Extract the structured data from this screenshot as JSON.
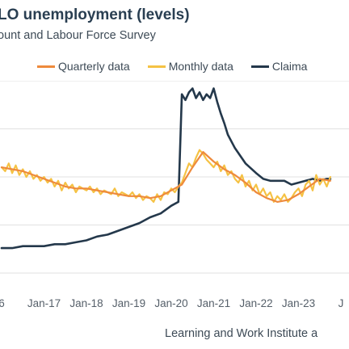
{
  "title": "LO unemployment (levels)",
  "subtitle": "ount and Labour Force Survey",
  "source": "Learning and Work Institute a",
  "colors": {
    "quarterly": "#ee8a3c",
    "monthly": "#f5c244",
    "claimant": "#24384b",
    "grid": "#e1e1e1"
  },
  "chart_data": {
    "type": "line",
    "title": "LO unemployment (levels)",
    "xlabel": "",
    "ylabel": "",
    "legend_position": "top",
    "grid": true,
    "ylim": [
      0,
      100
    ],
    "x_ticks": [
      "6",
      "Jan-17",
      "Jan-18",
      "Jan-19",
      "Jan-20",
      "Jan-21",
      "Jan-22",
      "Jan-23",
      "J"
    ],
    "series": [
      {
        "name": "Quarterly data",
        "color_key": "quarterly",
        "x": [
          2016.0,
          2016.25,
          2016.5,
          2016.75,
          2017.0,
          2017.25,
          2017.5,
          2017.75,
          2018.0,
          2018.25,
          2018.5,
          2018.75,
          2019.0,
          2019.25,
          2019.5,
          2019.75,
          2020.0,
          2020.25,
          2020.5,
          2020.75,
          2021.0,
          2021.25,
          2021.5,
          2021.75,
          2022.0,
          2022.25,
          2022.5,
          2022.75,
          2023.0,
          2023.25,
          2023.5,
          2023.75
        ],
        "values": [
          55,
          54,
          53,
          51,
          49,
          47,
          45,
          44,
          44,
          43,
          42,
          41,
          40,
          40,
          39,
          40,
          43,
          46,
          55,
          63,
          58,
          54,
          51,
          47,
          42,
          39,
          37,
          38,
          41,
          45,
          49,
          48
        ]
      },
      {
        "name": "Monthly data",
        "color_key": "monthly",
        "x": [
          2016.0,
          2016.083,
          2016.167,
          2016.25,
          2016.333,
          2016.417,
          2016.5,
          2016.583,
          2016.667,
          2016.75,
          2016.833,
          2016.917,
          2017.0,
          2017.083,
          2017.167,
          2017.25,
          2017.333,
          2017.417,
          2017.5,
          2017.583,
          2017.667,
          2017.75,
          2017.833,
          2017.917,
          2018.0,
          2018.083,
          2018.167,
          2018.25,
          2018.333,
          2018.417,
          2018.5,
          2018.583,
          2018.667,
          2018.75,
          2018.833,
          2018.917,
          2019.0,
          2019.083,
          2019.167,
          2019.25,
          2019.333,
          2019.417,
          2019.5,
          2019.583,
          2019.667,
          2019.75,
          2019.833,
          2019.917,
          2020.0,
          2020.083,
          2020.167,
          2020.25,
          2020.333,
          2020.417,
          2020.5,
          2020.583,
          2020.667,
          2020.75,
          2020.833,
          2020.917,
          2021.0,
          2021.083,
          2021.167,
          2021.25,
          2021.333,
          2021.417,
          2021.5,
          2021.583,
          2021.667,
          2021.75,
          2021.833,
          2021.917,
          2022.0,
          2022.083,
          2022.167,
          2022.25,
          2022.333,
          2022.417,
          2022.5,
          2022.583,
          2022.667,
          2022.75,
          2022.833,
          2022.917,
          2023.0,
          2023.083,
          2023.167,
          2023.25,
          2023.333,
          2023.417,
          2023.5,
          2023.583,
          2023.667,
          2023.75
        ],
        "values": [
          55,
          53,
          57,
          52,
          56,
          51,
          54,
          50,
          53,
          49,
          51,
          48,
          50,
          47,
          49,
          45,
          48,
          43,
          47,
          44,
          46,
          42,
          45,
          44,
          43,
          45,
          42,
          44,
          41,
          43,
          42,
          41,
          44,
          40,
          42,
          41,
          40,
          42,
          39,
          41,
          38,
          40,
          39,
          37,
          41,
          38,
          42,
          41,
          44,
          42,
          45,
          47,
          52,
          57,
          55,
          60,
          64,
          62,
          59,
          57,
          55,
          58,
          53,
          56,
          51,
          53,
          49,
          47,
          51,
          45,
          48,
          43,
          46,
          41,
          44,
          40,
          42,
          37,
          40,
          38,
          41,
          37,
          39,
          42,
          44,
          40,
          46,
          48,
          43,
          51,
          46,
          49,
          45,
          50
        ]
      },
      {
        "name": "Claima",
        "color_key": "claimant",
        "x": [
          2016.0,
          2016.25,
          2016.5,
          2016.75,
          2017.0,
          2017.25,
          2017.5,
          2017.75,
          2018.0,
          2018.25,
          2018.5,
          2018.75,
          2019.0,
          2019.25,
          2019.5,
          2019.75,
          2020.0,
          2020.167,
          2020.25,
          2020.333,
          2020.417,
          2020.5,
          2020.583,
          2020.667,
          2020.75,
          2020.833,
          2020.917,
          2021.0,
          2021.083,
          2021.167,
          2021.25,
          2021.333,
          2021.5,
          2021.75,
          2022.0,
          2022.167,
          2022.333,
          2022.5,
          2022.667,
          2022.833,
          2023.0,
          2023.167,
          2023.333,
          2023.5,
          2023.667,
          2023.75
        ],
        "values": [
          13,
          13,
          14,
          14,
          14,
          15,
          15,
          16,
          17,
          19,
          20,
          22,
          24,
          26,
          29,
          31,
          35,
          37,
          93,
          90,
          94,
          96,
          91,
          94,
          90,
          93,
          91,
          96,
          89,
          83,
          78,
          72,
          65,
          57,
          52,
          49,
          48,
          48,
          48,
          46,
          47,
          48,
          49,
          48,
          49,
          49
        ]
      }
    ]
  }
}
